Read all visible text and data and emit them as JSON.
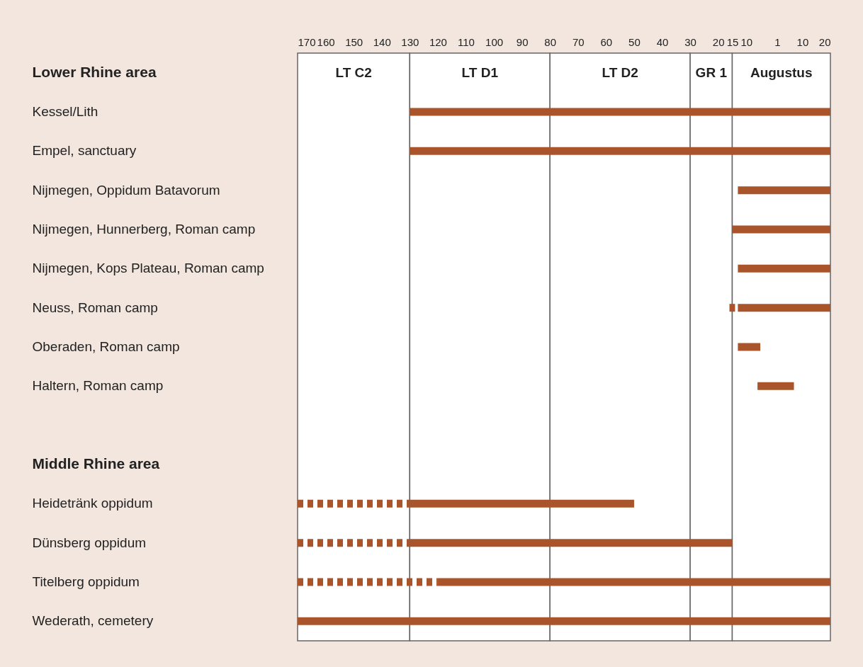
{
  "chart_data": {
    "type": "bar",
    "orientation": "horizontal",
    "categories": [
      "Lower Rhine area",
      "Kessel/Lith",
      "Empel, sanctuary",
      "Nijmegen, Oppidum Batavorum",
      "Nijmegen, Hunnerberg, Roman camp",
      "Nijmegen, Kops Plateau, Roman camp",
      "Neuss, Roman camp",
      "Oberaden, Roman camp",
      "Haltern, Roman camp",
      null,
      "Middle Rhine area",
      "Heidetränk oppidum",
      "Dünsberg oppidum",
      "Titelberg oppidum",
      "Wederath, cemetery"
    ],
    "series": [
      {
        "color": "#a9542b",
        "line_style": "solid",
        "base": [
          null,
          -130,
          -130,
          -13,
          -15,
          -13,
          -13,
          -13,
          -6,
          null,
          null,
          -130,
          -130,
          -120,
          -170
        ],
        "values": [
          null,
          150,
          150,
          33,
          35,
          33,
          33,
          8,
          13,
          null,
          null,
          80,
          115,
          140,
          190
        ]
      },
      {
        "color": "#a9542b",
        "line_style": "dashed",
        "base": [
          null,
          null,
          null,
          null,
          null,
          null,
          -16,
          null,
          null,
          null,
          null,
          -170,
          -170,
          -170,
          null
        ],
        "values": [
          null,
          null,
          null,
          null,
          null,
          null,
          2,
          null,
          null,
          null,
          null,
          40,
          40,
          50,
          null
        ]
      }
    ],
    "xlim": [
      -170,
      20
    ],
    "xticks": [
      {
        "value": -170,
        "label": "170"
      },
      {
        "value": -160,
        "label": "160"
      },
      {
        "value": -150,
        "label": "150"
      },
      {
        "value": -140,
        "label": "140"
      },
      {
        "value": -130,
        "label": "130"
      },
      {
        "value": -120,
        "label": "120"
      },
      {
        "value": -110,
        "label": "110"
      },
      {
        "value": -100,
        "label": "100"
      },
      {
        "value": -90,
        "label": "90"
      },
      {
        "value": -80,
        "label": "80"
      },
      {
        "value": -70,
        "label": "70"
      },
      {
        "value": -60,
        "label": "60"
      },
      {
        "value": -50,
        "label": "50"
      },
      {
        "value": -40,
        "label": "40"
      },
      {
        "value": -30,
        "label": "30"
      },
      {
        "value": -20,
        "label": "20"
      },
      {
        "value": -15,
        "label": "15"
      },
      {
        "value": -10,
        "label": "10"
      },
      1,
      10,
      20
    ],
    "bands": [
      {
        "axis": "x",
        "from": -170,
        "to": -130,
        "label": "LT C2",
        "color": "#ffffff"
      },
      {
        "axis": "x",
        "from": -130,
        "to": -80,
        "label": "LT D1",
        "color": "#ffffff"
      },
      {
        "axis": "x",
        "from": -80,
        "to": -30,
        "label": "LT D2",
        "color": "#ffffff"
      },
      {
        "axis": "x",
        "from": -30,
        "to": -15,
        "label": "GR 1",
        "color": "#ffffff"
      },
      {
        "axis": "x",
        "from": -15,
        "to": 20,
        "label": "Augustus",
        "color": "#ffffff"
      }
    ]
  }
}
